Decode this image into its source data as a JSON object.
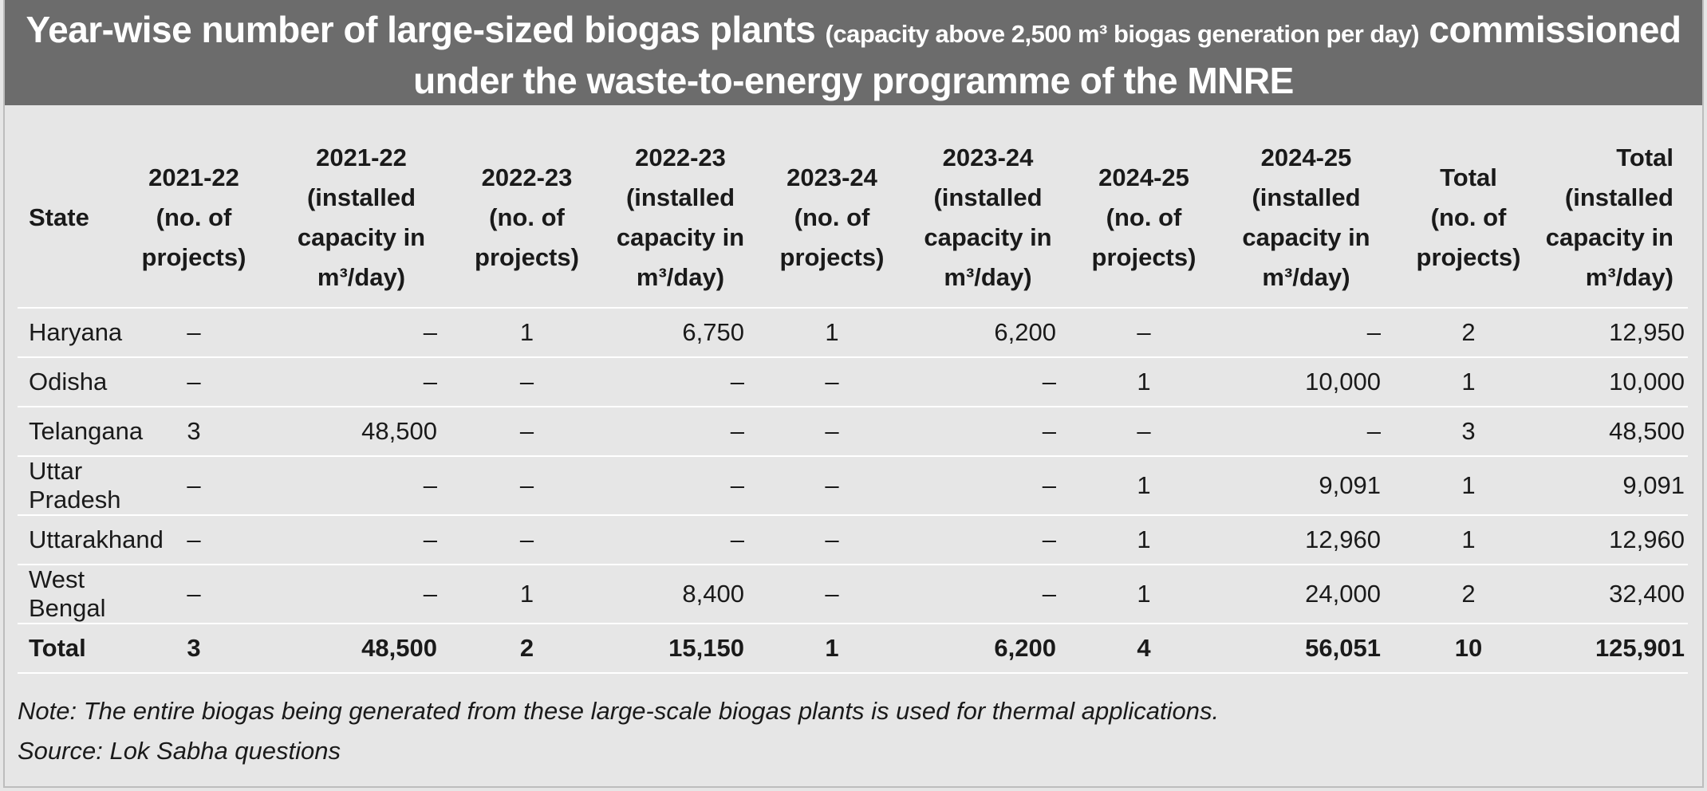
{
  "title": {
    "main_part1": "Year-wise number of large-sized biogas plants",
    "small_part": "(capacity above 2,500 m³ biogas generation per day)",
    "main_part2": "commissioned",
    "line2": "under the waste-to-energy programme of the MNRE"
  },
  "table": {
    "headers": [
      "State",
      "2021-22 (no. of projects)",
      "2021-22 (installed capacity in m³/day)",
      "2022-23 (no. of projects)",
      "2022-23 (installed capacity in m³/day)",
      "2023-24 (no. of projects)",
      "2023-24 (installed capacity in m³/day)",
      "2024-25 (no. of projects)",
      "2024-25 (installed capacity in m³/day)",
      "Total (no. of projects)",
      "Total (installed capacity in m³/day)"
    ],
    "rows": [
      [
        "Haryana",
        "–",
        "–",
        "1",
        "6,750",
        "1",
        "6,200",
        "–",
        "–",
        "2",
        "12,950"
      ],
      [
        "Odisha",
        "–",
        "–",
        "–",
        "–",
        "–",
        "–",
        "1",
        "10,000",
        "1",
        "10,000"
      ],
      [
        "Telangana",
        "3",
        "48,500",
        "–",
        "–",
        "–",
        "–",
        "–",
        "–",
        "3",
        "48,500"
      ],
      [
        "Uttar Pradesh",
        "–",
        "–",
        "–",
        "–",
        "–",
        "–",
        "1",
        "9,091",
        "1",
        "9,091"
      ],
      [
        "Uttarakhand",
        "–",
        "–",
        "–",
        "–",
        "–",
        "–",
        "1",
        "12,960",
        "1",
        "12,960"
      ],
      [
        "West Bengal",
        "–",
        "–",
        "1",
        "8,400",
        "–",
        "–",
        "1",
        "24,000",
        "2",
        "32,400"
      ]
    ],
    "total_row": [
      "Total",
      "3",
      "48,500",
      "2",
      "15,150",
      "1",
      "6,200",
      "4",
      "56,051",
      "10",
      "125,901"
    ]
  },
  "notes": {
    "note": "Note: The entire biogas being generated from these large-scale biogas plants is used for thermal applications.",
    "source": "Source: Lok Sabha questions"
  }
}
